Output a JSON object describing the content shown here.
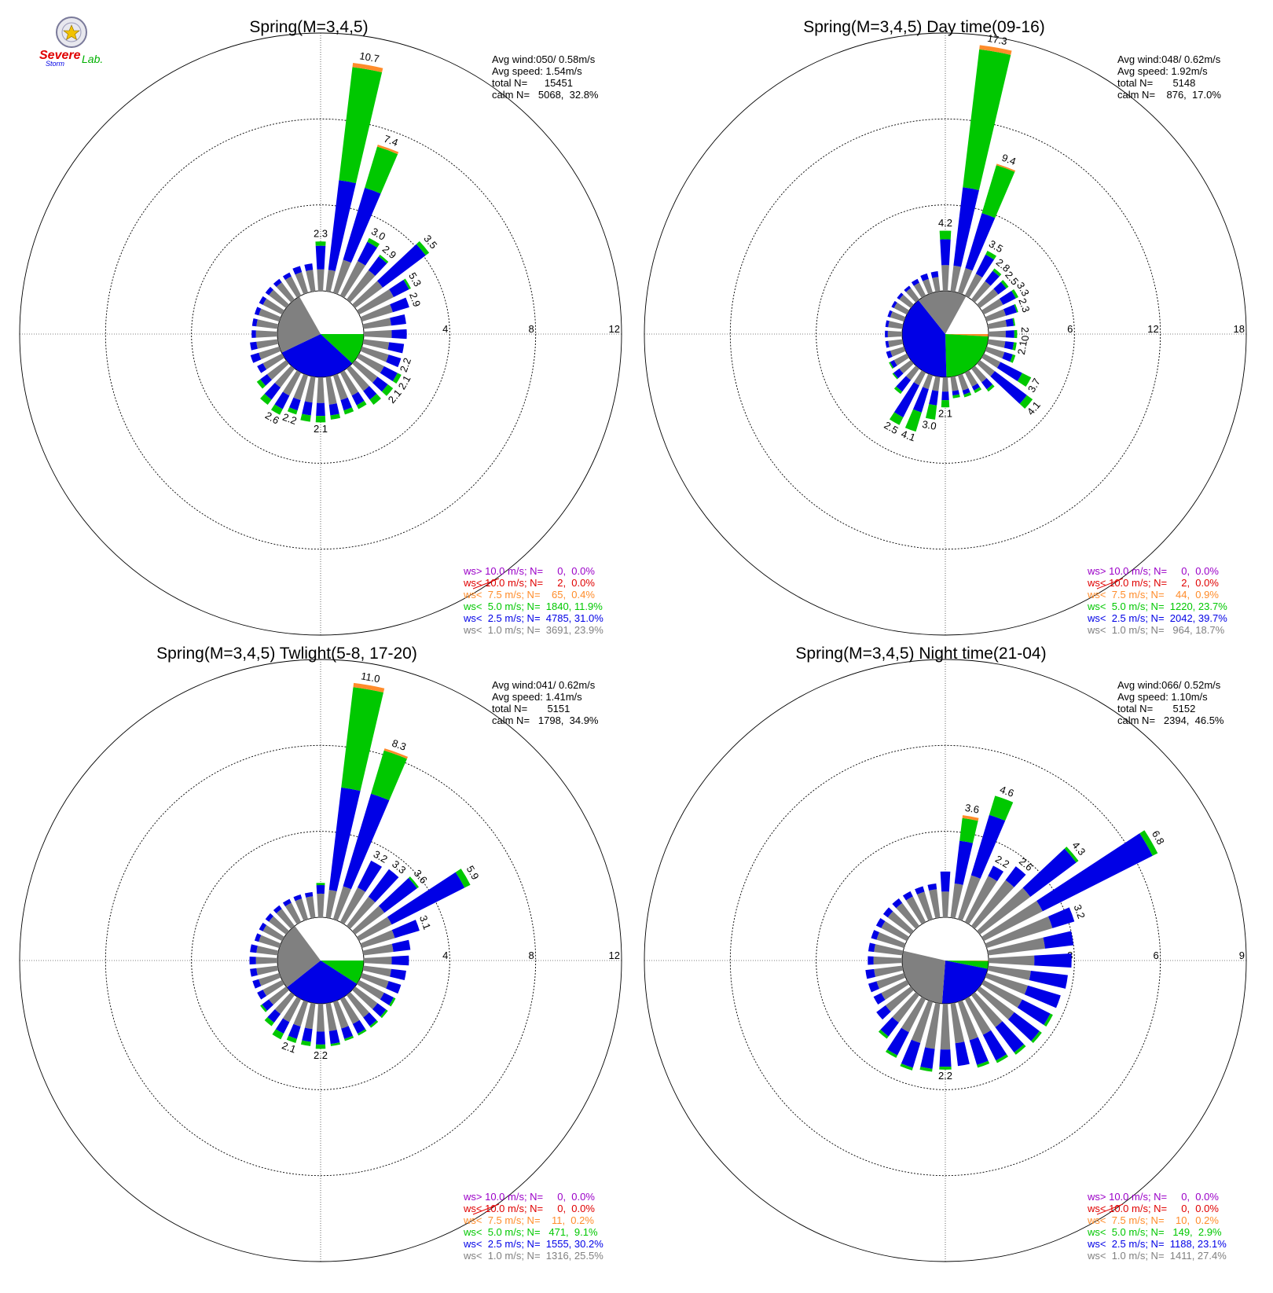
{
  "logo": {
    "lab_text": "Lab.",
    "severe_text": "Severe",
    "storm_text": "Storm"
  },
  "colors": {
    "gt10": "#9b00c8",
    "lt10": "#e00000",
    "lt75": "#ff8c2a",
    "lt50": "#00c800",
    "lt25": "#0000e6",
    "lt10ms": "#808080",
    "ring": "#000000"
  },
  "chart_data": [
    {
      "type": "windrose",
      "title": "Spring(M=3,4,5)",
      "ring_labels": [
        "4",
        "8",
        "12"
      ],
      "rmax": 12,
      "stats": [
        "Avg wind:050/ 0.58m/s",
        "Avg speed: 1.54m/s",
        "total N=      15451",
        "calm N=   5068,  32.8%"
      ],
      "legend": [
        "ws> 10.0 m/s; N=     0,  0.0%",
        "ws< 10.0 m/s; N=     2,  0.0%",
        "ws<  7.5 m/s; N=    65,  0.4%",
        "ws<  5.0 m/s; N=  1840, 11.9%",
        "ws<  2.5 m/s; N=  4785, 31.0%",
        "ws<  1.0 m/s; N=  3691, 23.9%"
      ],
      "sector_width_deg": 10,
      "directions": [
        0,
        10,
        20,
        30,
        40,
        50,
        60,
        70,
        80,
        90,
        100,
        110,
        120,
        130,
        140,
        150,
        160,
        170,
        180,
        190,
        200,
        210,
        220,
        230,
        240,
        250,
        260,
        270,
        280,
        290,
        300,
        310,
        320,
        330,
        340,
        350
      ],
      "bins": {
        "lt10": [
          1.0,
          1.0,
          1.6,
          1.8,
          1.7,
          1.6,
          1.8,
          1.5,
          1.3,
          1.3,
          1.2,
          1.3,
          1.3,
          1.3,
          1.3,
          1.2,
          1.2,
          1.3,
          1.2,
          1.2,
          1.2,
          1.2,
          1.1,
          1.1,
          1.0,
          1.0,
          1.0,
          1.0,
          1.0,
          1.0,
          1.0,
          1.0,
          1.0,
          1.0,
          1.0,
          1.0
        ],
        "lt25": [
          1.1,
          4.2,
          3.5,
          1.0,
          0.8,
          2.5,
          0.8,
          0.8,
          0.7,
          0.7,
          0.7,
          0.6,
          0.7,
          0.6,
          0.5,
          0.5,
          0.5,
          0.5,
          0.6,
          0.6,
          0.5,
          0.7,
          0.7,
          0.4,
          0.3,
          0.4,
          0.3,
          0.2,
          0.2,
          0.2,
          0.2,
          0.2,
          0.2,
          0.2,
          0.3,
          0.3
        ],
        "lt50": [
          0.2,
          5.3,
          2.0,
          0.2,
          0.1,
          0.2,
          0.1,
          0.0,
          0.0,
          0.0,
          0.0,
          0.0,
          0.2,
          0.3,
          0.3,
          0.2,
          0.2,
          0.2,
          0.3,
          0.3,
          0.2,
          0.3,
          0.3,
          0.2,
          0.0,
          0.0,
          0.0,
          0.0,
          0.0,
          0.0,
          0.0,
          0.0,
          0.0,
          0.0,
          0.0,
          0.0
        ],
        "lt75": [
          0.0,
          0.2,
          0.1,
          0.0,
          0.0,
          0.0,
          0.0,
          0.0,
          0.0,
          0.0,
          0.0,
          0.0,
          0.0,
          0.0,
          0.0,
          0.0,
          0.0,
          0.0,
          0.0,
          0.0,
          0.0,
          0.0,
          0.0,
          0.0,
          0.0,
          0.0,
          0.0,
          0.0,
          0.0,
          0.0,
          0.0,
          0.0,
          0.0,
          0.0,
          0.0,
          0.0
        ]
      },
      "labels": [
        {
          "dir": 0,
          "text": "2.3"
        },
        {
          "dir": 10,
          "text": "10.7"
        },
        {
          "dir": 20,
          "text": "7.4"
        },
        {
          "dir": 30,
          "text": "3.0"
        },
        {
          "dir": 40,
          "text": "2.9"
        },
        {
          "dir": 50,
          "text": "3.5"
        },
        {
          "dir": 60,
          "text": "5.3"
        },
        {
          "dir": 70,
          "text": "2.9"
        },
        {
          "dir": 110,
          "text": "2.2"
        },
        {
          "dir": 120,
          "text": "2.1"
        },
        {
          "dir": 130,
          "text": "2.1"
        },
        {
          "dir": 180,
          "text": "2.1"
        },
        {
          "dir": 200,
          "text": "2.2"
        },
        {
          "dir": 210,
          "text": "2.6"
        }
      ],
      "calm_pie": [
        {
          "bin": "lt50",
          "pct": 11.9
        },
        {
          "bin": "lt25",
          "pct": 31.0
        },
        {
          "bin": "lt10ms",
          "pct": 23.9
        }
      ]
    },
    {
      "type": "windrose",
      "title": "Spring(M=3,4,5) Day time(09-16)",
      "ring_labels": [
        "6",
        "12",
        "18"
      ],
      "rmax": 18,
      "stats": [
        "Avg wind:048/ 0.62m/s",
        "Avg speed: 1.92m/s",
        "total N=       5148",
        "calm N=    876,  17.0%"
      ],
      "legend": [
        "ws> 10.0 m/s; N=     0,  0.0%",
        "ws< 10.0 m/s; N=     2,  0.0%",
        "ws<  7.5 m/s; N=    44,  0.9%",
        "ws<  5.0 m/s; N=  1220, 23.7%",
        "ws<  2.5 m/s; N=  2042, 39.7%",
        "ws<  1.0 m/s; N=   964, 18.7%"
      ],
      "sector_width_deg": 10,
      "directions": [
        0,
        10,
        20,
        30,
        40,
        50,
        60,
        70,
        80,
        90,
        100,
        110,
        120,
        130,
        140,
        150,
        160,
        170,
        180,
        190,
        200,
        210,
        220,
        230,
        240,
        250,
        260,
        270,
        280,
        290,
        300,
        310,
        320,
        330,
        340,
        350
      ],
      "bins": {
        "lt10": [
          1.8,
          1.8,
          1.8,
          1.7,
          1.6,
          1.6,
          1.5,
          1.4,
          1.3,
          1.2,
          1.2,
          1.3,
          1.3,
          1.3,
          1.2,
          1.1,
          1.1,
          1.0,
          1.0,
          1.0,
          1.0,
          1.0,
          1.0,
          1.0,
          1.0,
          1.0,
          1.0,
          1.0,
          1.0,
          1.0,
          1.0,
          1.0,
          1.0,
          1.0,
          1.0,
          1.0
        ],
        "lt25": [
          1.8,
          5.5,
          4.0,
          1.5,
          0.9,
          0.7,
          1.0,
          0.8,
          0.5,
          0.6,
          0.6,
          0.6,
          1.7,
          2.8,
          0.6,
          0.3,
          0.3,
          0.3,
          0.6,
          1.0,
          1.7,
          2.5,
          1.0,
          0.5,
          0.3,
          0.3,
          0.2,
          0.2,
          0.2,
          0.2,
          0.2,
          0.2,
          0.2,
          0.3,
          0.4,
          0.4
        ],
        "lt50": [
          0.6,
          9.7,
          3.5,
          0.3,
          0.2,
          0.2,
          0.2,
          0.1,
          0.1,
          0.2,
          0.2,
          0.2,
          0.7,
          0.5,
          0.2,
          0.2,
          0.2,
          0.2,
          0.5,
          1.0,
          1.4,
          0.6,
          0.2,
          0.1,
          0.1,
          0.0,
          0.0,
          0.0,
          0.0,
          0.0,
          0.0,
          0.0,
          0.0,
          0.0,
          0.0,
          0.0
        ],
        "lt75": [
          0.0,
          0.3,
          0.1,
          0.0,
          0.0,
          0.0,
          0.0,
          0.0,
          0.0,
          0.0,
          0.0,
          0.0,
          0.0,
          0.0,
          0.0,
          0.0,
          0.0,
          0.0,
          0.0,
          0.0,
          0.0,
          0.0,
          0.0,
          0.0,
          0.0,
          0.0,
          0.0,
          0.0,
          0.0,
          0.0,
          0.0,
          0.0,
          0.0,
          0.0,
          0.0,
          0.0
        ]
      },
      "labels": [
        {
          "dir": 0,
          "text": "4.2"
        },
        {
          "dir": 10,
          "text": "17.3"
        },
        {
          "dir": 20,
          "text": "9.4"
        },
        {
          "dir": 30,
          "text": "3.5"
        },
        {
          "dir": 40,
          "text": "2.8"
        },
        {
          "dir": 50,
          "text": "2.5"
        },
        {
          "dir": 60,
          "text": "3.3"
        },
        {
          "dir": 70,
          "text": "2.3"
        },
        {
          "dir": 90,
          "text": "2.0"
        },
        {
          "dir": 100,
          "text": "2.1"
        },
        {
          "dir": 120,
          "text": "3.7"
        },
        {
          "dir": 130,
          "text": "4.1"
        },
        {
          "dir": 180,
          "text": "2.1"
        },
        {
          "dir": 190,
          "text": "3.0"
        },
        {
          "dir": 200,
          "text": "4.1"
        },
        {
          "dir": 210,
          "text": "2.5"
        }
      ],
      "calm_pie": [
        {
          "bin": "lt75",
          "pct": 0.9
        },
        {
          "bin": "lt50",
          "pct": 23.7
        },
        {
          "bin": "lt25",
          "pct": 39.7
        },
        {
          "bin": "lt10ms",
          "pct": 18.7
        }
      ]
    },
    {
      "type": "windrose",
      "title": "Spring(M=3,4,5) Twlight(5-8, 17-20)",
      "ring_labels": [
        "4",
        "8",
        "12"
      ],
      "rmax": 12,
      "stats": [
        "Avg wind:041/ 0.62m/s",
        "Avg speed: 1.41m/s",
        "total N=       5151",
        "calm N=   1798,  34.9%"
      ],
      "legend": [
        "ws> 10.0 m/s; N=     0,  0.0%",
        "ws< 10.0 m/s; N=     0,  0.0%",
        "ws<  7.5 m/s; N=    11,  0.2%",
        "ws<  5.0 m/s; N=   471,  9.1%",
        "ws<  2.5 m/s; N=  1555, 30.2%",
        "ws<  1.0 m/s; N=  1316, 25.5%"
      ],
      "sector_width_deg": 10,
      "directions": [
        0,
        10,
        20,
        30,
        40,
        50,
        60,
        70,
        80,
        90,
        100,
        110,
        120,
        130,
        140,
        150,
        160,
        170,
        180,
        190,
        200,
        210,
        220,
        230,
        240,
        250,
        260,
        270,
        280,
        290,
        300,
        310,
        320,
        330,
        340,
        350
      ],
      "bins": {
        "lt10": [
          1.1,
          1.3,
          1.6,
          1.8,
          1.7,
          1.7,
          1.7,
          1.6,
          1.4,
          1.3,
          1.3,
          1.3,
          1.3,
          1.3,
          1.3,
          1.3,
          1.3,
          1.3,
          1.3,
          1.2,
          1.2,
          1.2,
          1.1,
          1.0,
          1.0,
          1.0,
          1.0,
          1.0,
          1.0,
          1.0,
          1.0,
          1.0,
          1.0,
          1.0,
          1.0,
          1.0
        ],
        "lt25": [
          0.4,
          4.8,
          4.5,
          1.4,
          1.6,
          1.9,
          3.8,
          1.2,
          0.8,
          0.8,
          0.7,
          0.6,
          0.5,
          0.5,
          0.5,
          0.5,
          0.5,
          0.6,
          0.6,
          0.6,
          0.6,
          0.6,
          0.5,
          0.4,
          0.3,
          0.3,
          0.3,
          0.3,
          0.3,
          0.2,
          0.2,
          0.2,
          0.2,
          0.2,
          0.2,
          0.2
        ],
        "lt50": [
          0.1,
          4.7,
          2.1,
          0.0,
          0.0,
          0.1,
          0.3,
          0.0,
          0.0,
          0.0,
          0.0,
          0.0,
          0.1,
          0.1,
          0.1,
          0.1,
          0.1,
          0.1,
          0.2,
          0.2,
          0.2,
          0.3,
          0.2,
          0.1,
          0.0,
          0.0,
          0.0,
          0.0,
          0.0,
          0.0,
          0.0,
          0.0,
          0.0,
          0.0,
          0.0,
          0.0
        ],
        "lt75": [
          0.0,
          0.2,
          0.1,
          0.0,
          0.0,
          0.0,
          0.0,
          0.0,
          0.0,
          0.0,
          0.0,
          0.0,
          0.0,
          0.0,
          0.0,
          0.0,
          0.0,
          0.0,
          0.0,
          0.0,
          0.0,
          0.0,
          0.0,
          0.0,
          0.0,
          0.0,
          0.0,
          0.0,
          0.0,
          0.0,
          0.0,
          0.0,
          0.0,
          0.0,
          0.0,
          0.0
        ]
      },
      "labels": [
        {
          "dir": 10,
          "text": "11.0"
        },
        {
          "dir": 20,
          "text": "8.3"
        },
        {
          "dir": 30,
          "text": "3.2"
        },
        {
          "dir": 40,
          "text": "3.3"
        },
        {
          "dir": 50,
          "text": "3.6"
        },
        {
          "dir": 60,
          "text": "5.9"
        },
        {
          "dir": 70,
          "text": "3.1"
        },
        {
          "dir": 180,
          "text": "2.2"
        },
        {
          "dir": 200,
          "text": "2.1"
        }
      ],
      "calm_pie": [
        {
          "bin": "lt50",
          "pct": 9.1
        },
        {
          "bin": "lt25",
          "pct": 30.2
        },
        {
          "bin": "lt10ms",
          "pct": 25.5
        }
      ]
    },
    {
      "type": "windrose",
      "title": "Spring(M=3,4,5) Night time(21-04)",
      "ring_labels": [
        "3",
        "6",
        "9"
      ],
      "rmax": 9,
      "stats": [
        "Avg wind:066/ 0.52m/s",
        "Avg speed: 1.10m/s",
        "total N=       5152",
        "calm N=   2394,  46.5%"
      ],
      "legend": [
        "ws> 10.0 m/s; N=     0,  0.0%",
        "ws< 10.0 m/s; N=     0,  0.0%",
        "ws<  7.5 m/s; N=    10,  0.2%",
        "ws<  5.0 m/s; N=   149,  2.9%",
        "ws<  2.5 m/s; N=  1188, 23.1%",
        "ws<  1.0 m/s; N=  1411, 27.4%"
      ],
      "sector_width_deg": 10,
      "directions": [
        0,
        10,
        20,
        30,
        40,
        50,
        60,
        70,
        80,
        90,
        100,
        110,
        120,
        130,
        140,
        150,
        160,
        170,
        180,
        190,
        200,
        210,
        220,
        230,
        240,
        250,
        260,
        270,
        280,
        290,
        300,
        310,
        320,
        330,
        340,
        350
      ],
      "bins": {
        "lt10": [
          0.9,
          1.2,
          1.6,
          1.8,
          2.0,
          2.2,
          2.3,
          2.4,
          2.0,
          1.6,
          1.5,
          1.5,
          1.5,
          1.5,
          1.4,
          1.4,
          1.4,
          1.4,
          1.6,
          1.6,
          1.5,
          1.3,
          1.2,
          1.1,
          1.0,
          1.0,
          1.0,
          1.0,
          1.0,
          1.0,
          1.0,
          1.0,
          1.0,
          1.0,
          1.0,
          1.0
        ],
        "lt25": [
          0.7,
          1.5,
          2.2,
          0.4,
          0.6,
          2.0,
          4.3,
          0.8,
          1.0,
          1.3,
          1.3,
          1.2,
          1.1,
          1.1,
          1.1,
          1.0,
          0.9,
          0.8,
          0.6,
          0.7,
          0.9,
          0.9,
          0.6,
          0.4,
          0.3,
          0.3,
          0.3,
          0.2,
          0.2,
          0.2,
          0.2,
          0.2,
          0.2,
          0.2,
          0.2,
          0.2
        ],
        "lt50": [
          0.0,
          0.8,
          0.7,
          0.0,
          0.0,
          0.1,
          0.2,
          0.0,
          0.0,
          0.0,
          0.0,
          0.0,
          0.1,
          0.1,
          0.1,
          0.1,
          0.1,
          0.0,
          0.1,
          0.1,
          0.1,
          0.1,
          0.1,
          0.0,
          0.0,
          0.0,
          0.0,
          0.0,
          0.0,
          0.0,
          0.0,
          0.0,
          0.0,
          0.0,
          0.0,
          0.0
        ],
        "lt75": [
          0.0,
          0.1,
          0.0,
          0.0,
          0.0,
          0.0,
          0.0,
          0.0,
          0.0,
          0.0,
          0.0,
          0.0,
          0.0,
          0.0,
          0.0,
          0.0,
          0.0,
          0.0,
          0.0,
          0.0,
          0.0,
          0.0,
          0.0,
          0.0,
          0.0,
          0.0,
          0.0,
          0.0,
          0.0,
          0.0,
          0.0,
          0.0,
          0.0,
          0.0,
          0.0,
          0.0
        ]
      },
      "labels": [
        {
          "dir": 10,
          "text": "3.6"
        },
        {
          "dir": 20,
          "text": "4.6"
        },
        {
          "dir": 30,
          "text": "2.2"
        },
        {
          "dir": 40,
          "text": "2.6"
        },
        {
          "dir": 50,
          "text": "4.3"
        },
        {
          "dir": 60,
          "text": "6.8"
        },
        {
          "dir": 70,
          "text": "3.2"
        },
        {
          "dir": 180,
          "text": "2.2"
        }
      ],
      "calm_pie": [
        {
          "bin": "lt75",
          "pct": 0.2
        },
        {
          "bin": "lt50",
          "pct": 2.9
        },
        {
          "bin": "lt25",
          "pct": 23.1
        },
        {
          "bin": "lt10ms",
          "pct": 27.4
        }
      ]
    }
  ]
}
